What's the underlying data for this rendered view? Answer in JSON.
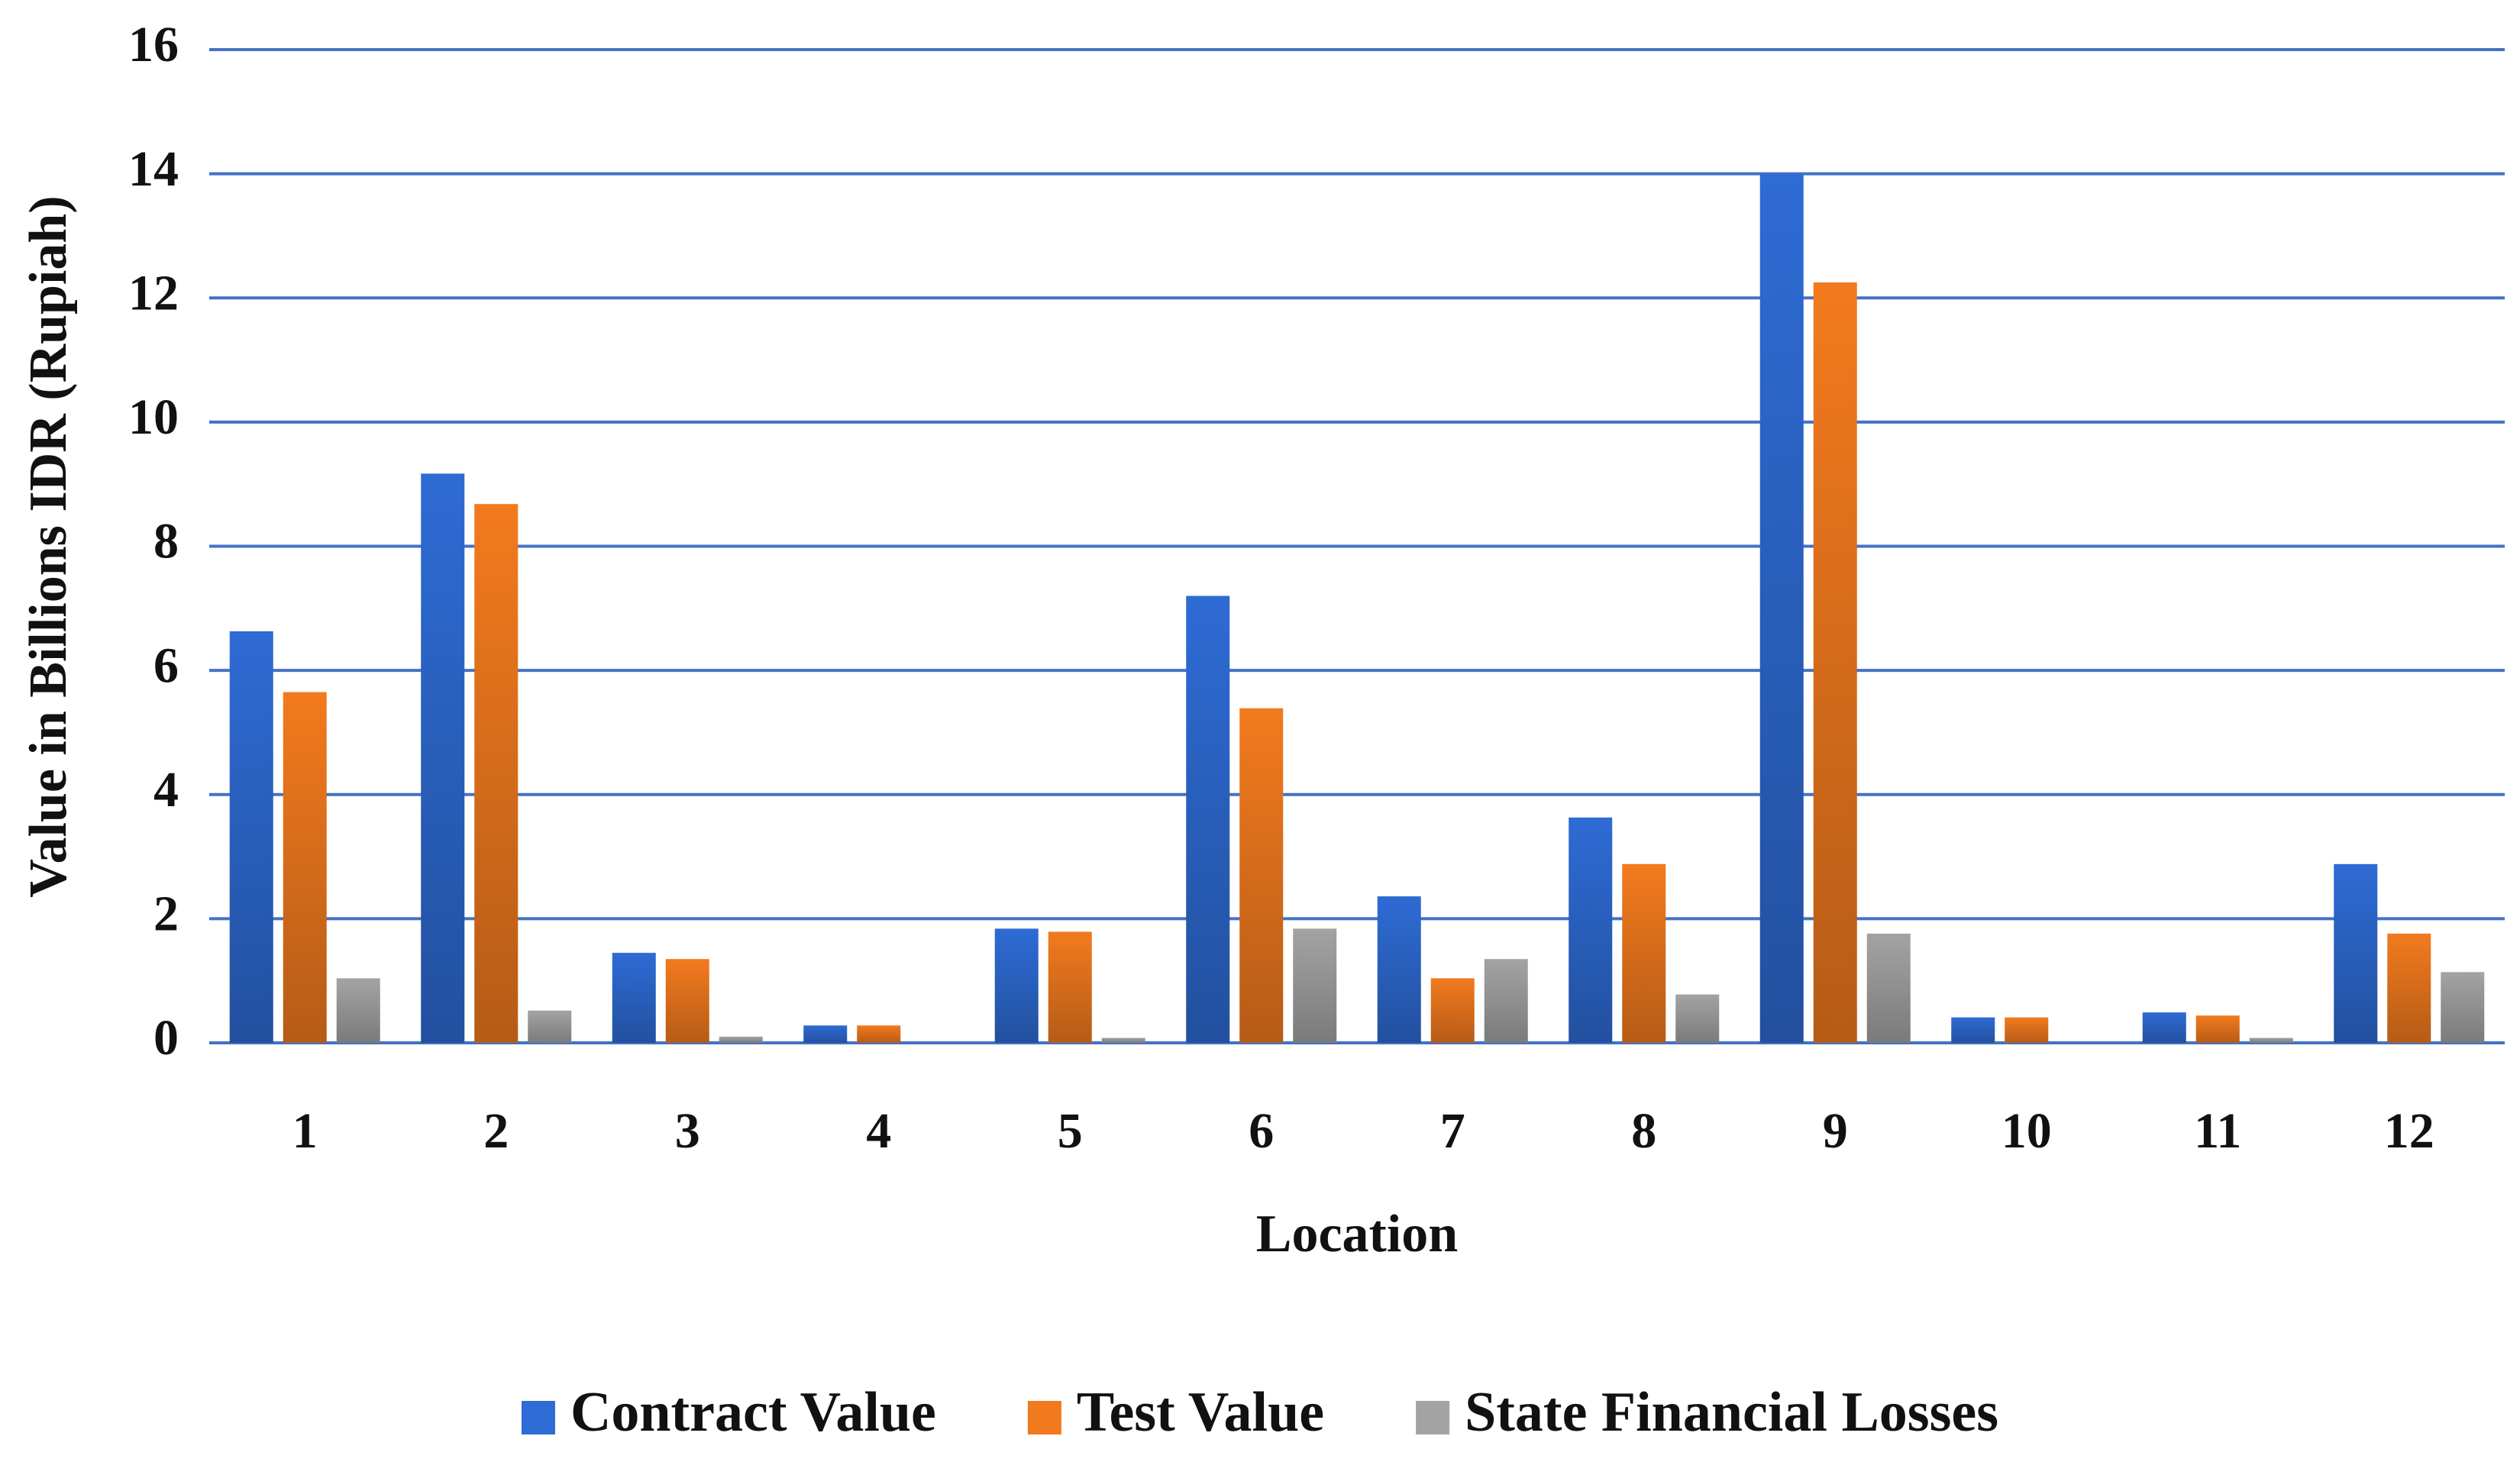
{
  "chart_data": {
    "type": "bar",
    "x_label": "Location",
    "y_label": "Value in Billions IDR (Rupiah)",
    "categories": [
      "1",
      "2",
      "3",
      "4",
      "5",
      "6",
      "7",
      "8",
      "9",
      "10",
      "11",
      "12"
    ],
    "series": [
      {
        "name": "Contract Value",
        "color": "#2e6bd4",
        "values": [
          6.63,
          9.17,
          1.45,
          0.28,
          1.84,
          7.2,
          2.36,
          3.63,
          14.0,
          0.41,
          0.49,
          2.88
        ]
      },
      {
        "name": "Test Value",
        "color": "#f27a1e",
        "values": [
          5.65,
          8.68,
          1.35,
          0.28,
          1.79,
          5.39,
          1.04,
          2.88,
          12.25,
          0.41,
          0.44,
          1.76
        ]
      },
      {
        "name": "State Financial Losses",
        "color": "#a3a3a3",
        "values": [
          1.04,
          0.52,
          0.1,
          0,
          0.08,
          1.84,
          1.35,
          0.78,
          1.76,
          0,
          0.08,
          1.14
        ]
      }
    ],
    "ylim": [
      0,
      16
    ],
    "yticks": [
      0,
      2,
      4,
      6,
      8,
      10,
      12,
      14,
      16
    ],
    "grid": true,
    "grid_color": "#4472c4",
    "legend_position": "bottom"
  }
}
